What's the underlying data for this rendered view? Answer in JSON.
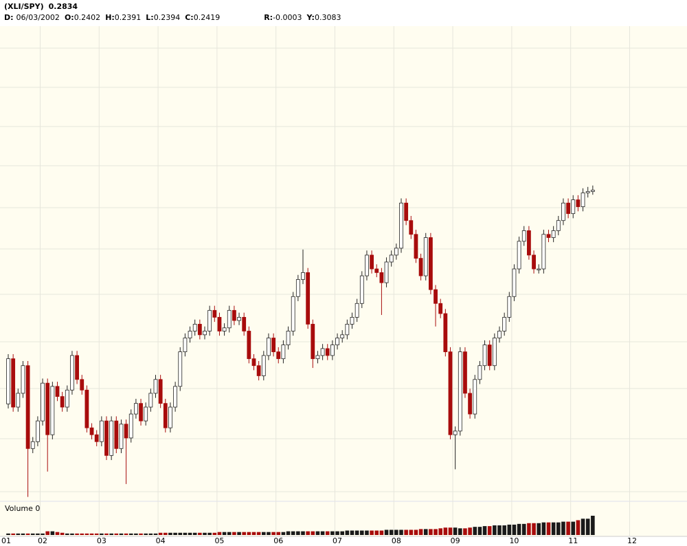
{
  "header": {
    "symbol": "(XLI/SPY)",
    "last": "0.2834",
    "fields": [
      {
        "label": "D:",
        "value": "06/03/2002"
      },
      {
        "label": "O:",
        "value": "0.2402"
      },
      {
        "label": "H:",
        "value": "0.2391"
      },
      {
        "label": "L:",
        "value": "0.2394"
      },
      {
        "label": "C:",
        "value": "0.2419"
      },
      {
        "label": "R:",
        "value": "-0.0003"
      },
      {
        "label": "Y:",
        "value": "0.3083"
      }
    ]
  },
  "volume_label": "Volume 0",
  "chart_data": {
    "type": "candlestick",
    "ylim": [
      0.216,
      0.319
    ],
    "up_color": "#ffffff",
    "down_color": "#a80c0c",
    "volume_up_color": "#1a1a1a",
    "volume_down_color": "#a80c0c",
    "xticks": [
      "01",
      "02",
      "03",
      "04",
      "05",
      "06",
      "07",
      "08",
      "09",
      "10",
      "11",
      "12"
    ],
    "open": [
      0.237,
      0.2468,
      0.2363,
      0.2393,
      0.2453,
      0.2273,
      0.2288,
      0.2333,
      0.2415,
      0.2303,
      0.2408,
      0.2386,
      0.2363,
      0.24,
      0.2475,
      0.2423,
      0.24,
      0.2318,
      0.2303,
      0.2288,
      0.2333,
      0.2258,
      0.2333,
      0.2273,
      0.2326,
      0.2296,
      0.2348,
      0.2371,
      0.2333,
      0.2363,
      0.2393,
      0.2423,
      0.2371,
      0.2318,
      0.2363,
      0.2408,
      0.2483,
      0.2513,
      0.2528,
      0.2543,
      0.252,
      0.2528,
      0.2573,
      0.2558,
      0.2528,
      0.2535,
      0.2573,
      0.2551,
      0.2558,
      0.2528,
      0.2468,
      0.2453,
      0.2431,
      0.2475,
      0.2513,
      0.2483,
      0.2468,
      0.2498,
      0.2528,
      0.2603,
      0.264,
      0.2655,
      0.2543,
      0.2468,
      0.2475,
      0.249,
      0.2475,
      0.2498,
      0.2513,
      0.252,
      0.2543,
      0.2558,
      0.2588,
      0.2648,
      0.2693,
      0.2663,
      0.2655,
      0.2633,
      0.2678,
      0.2693,
      0.2708,
      0.2806,
      0.2768,
      0.2738,
      0.2686,
      0.2648,
      0.2731,
      0.2618,
      0.2588,
      0.2566,
      0.2483,
      0.2303,
      0.2311,
      0.2483,
      0.2393,
      0.2348,
      0.2423,
      0.2453,
      0.2498,
      0.2453,
      0.2513,
      0.2528,
      0.2558,
      0.2603,
      0.2663,
      0.2723,
      0.2746,
      0.2693,
      0.2663,
      0.2663,
      0.2738,
      0.2731,
      0.2746,
      0.2768,
      0.2806,
      0.2783,
      0.2813,
      0.2798,
      0.2828,
      0.2831
    ],
    "high": [
      0.2478,
      0.2478,
      0.2403,
      0.2463,
      0.2463,
      0.2298,
      0.2343,
      0.2425,
      0.2425,
      0.2418,
      0.2418,
      0.2396,
      0.241,
      0.2485,
      0.2485,
      0.2433,
      0.241,
      0.2328,
      0.2313,
      0.2343,
      0.2343,
      0.2343,
      0.2343,
      0.2336,
      0.2336,
      0.2358,
      0.2381,
      0.2381,
      0.2373,
      0.2403,
      0.2433,
      0.2433,
      0.2381,
      0.2373,
      0.2418,
      0.2493,
      0.2523,
      0.2538,
      0.2553,
      0.2553,
      0.2538,
      0.2583,
      0.2583,
      0.2568,
      0.2545,
      0.2583,
      0.2583,
      0.2568,
      0.2568,
      0.2538,
      0.2478,
      0.2463,
      0.2485,
      0.2523,
      0.2523,
      0.2493,
      0.2508,
      0.2538,
      0.2613,
      0.265,
      0.2705,
      0.2665,
      0.2553,
      0.2485,
      0.25,
      0.25,
      0.2508,
      0.2523,
      0.253,
      0.2553,
      0.2568,
      0.2598,
      0.2658,
      0.2703,
      0.2703,
      0.2673,
      0.2665,
      0.2688,
      0.2703,
      0.2718,
      0.2816,
      0.2816,
      0.2778,
      0.2748,
      0.2696,
      0.2741,
      0.2741,
      0.2628,
      0.2598,
      0.2576,
      0.2493,
      0.2321,
      0.2493,
      0.2493,
      0.2403,
      0.2433,
      0.2463,
      0.2508,
      0.2508,
      0.2523,
      0.2538,
      0.2568,
      0.2613,
      0.2673,
      0.2733,
      0.2756,
      0.2756,
      0.2703,
      0.2673,
      0.2748,
      0.2748,
      0.2756,
      0.2778,
      0.2816,
      0.2816,
      0.2823,
      0.2823,
      0.2838,
      0.2841,
      0.2844
    ],
    "low": [
      0.236,
      0.2353,
      0.2353,
      0.2383,
      0.2168,
      0.2263,
      0.2278,
      0.2323,
      0.2223,
      0.2293,
      0.2376,
      0.2353,
      0.2353,
      0.239,
      0.2413,
      0.239,
      0.2308,
      0.2293,
      0.2278,
      0.2278,
      0.2248,
      0.2248,
      0.2263,
      0.2263,
      0.2196,
      0.2286,
      0.2338,
      0.2323,
      0.2323,
      0.2353,
      0.2383,
      0.2361,
      0.2308,
      0.2308,
      0.2353,
      0.2398,
      0.2473,
      0.2503,
      0.2518,
      0.251,
      0.251,
      0.2518,
      0.2548,
      0.2518,
      0.2518,
      0.2525,
      0.2541,
      0.2541,
      0.2518,
      0.2458,
      0.2443,
      0.2421,
      0.2421,
      0.2465,
      0.2473,
      0.2458,
      0.2458,
      0.2488,
      0.2518,
      0.2593,
      0.263,
      0.2533,
      0.2448,
      0.2458,
      0.2465,
      0.2465,
      0.2465,
      0.2488,
      0.2503,
      0.251,
      0.2533,
      0.2548,
      0.2578,
      0.2638,
      0.2653,
      0.2645,
      0.2563,
      0.2623,
      0.2668,
      0.2683,
      0.2698,
      0.2758,
      0.2728,
      0.2676,
      0.2638,
      0.2638,
      0.2608,
      0.2538,
      0.2556,
      0.2473,
      0.2293,
      0.2228,
      0.2301,
      0.2383,
      0.2338,
      0.2338,
      0.2413,
      0.2443,
      0.2443,
      0.2443,
      0.2503,
      0.2518,
      0.2548,
      0.2593,
      0.2653,
      0.2713,
      0.2683,
      0.2653,
      0.2653,
      0.2653,
      0.2721,
      0.2721,
      0.2736,
      0.2758,
      0.2773,
      0.2773,
      0.2788,
      0.2788,
      0.2818,
      0.2824
    ],
    "close": [
      0.2468,
      0.2363,
      0.2393,
      0.2453,
      0.2273,
      0.2288,
      0.2333,
      0.2415,
      0.2303,
      0.2408,
      0.2386,
      0.2363,
      0.24,
      0.2475,
      0.2423,
      0.24,
      0.2318,
      0.2303,
      0.2288,
      0.2333,
      0.2258,
      0.2333,
      0.2273,
      0.2326,
      0.2296,
      0.2348,
      0.2371,
      0.2333,
      0.2363,
      0.2393,
      0.2423,
      0.2371,
      0.2318,
      0.2363,
      0.2408,
      0.2483,
      0.2513,
      0.2528,
      0.2543,
      0.252,
      0.2528,
      0.2573,
      0.2558,
      0.2528,
      0.2535,
      0.2573,
      0.2551,
      0.2558,
      0.2528,
      0.2468,
      0.2453,
      0.2431,
      0.2475,
      0.2513,
      0.2483,
      0.2468,
      0.2498,
      0.2528,
      0.2603,
      0.264,
      0.2655,
      0.2543,
      0.2468,
      0.2475,
      0.249,
      0.2475,
      0.2498,
      0.2513,
      0.252,
      0.2543,
      0.2558,
      0.2588,
      0.2648,
      0.2693,
      0.2663,
      0.2655,
      0.2633,
      0.2678,
      0.2693,
      0.2708,
      0.2806,
      0.2768,
      0.2738,
      0.2686,
      0.2648,
      0.2731,
      0.2618,
      0.2588,
      0.2566,
      0.2483,
      0.2303,
      0.2311,
      0.2483,
      0.2393,
      0.2348,
      0.2423,
      0.2453,
      0.2498,
      0.2453,
      0.2513,
      0.2528,
      0.2558,
      0.2603,
      0.2663,
      0.2723,
      0.2746,
      0.2693,
      0.2663,
      0.2663,
      0.2738,
      0.2731,
      0.2746,
      0.2768,
      0.2806,
      0.2783,
      0.2813,
      0.2798,
      0.2828,
      0.2831,
      0.2834
    ],
    "volume": [
      2,
      2,
      2,
      2,
      2,
      2,
      2,
      2,
      5,
      5,
      4,
      3,
      2,
      2,
      2,
      2,
      2,
      2,
      2,
      2,
      2,
      2,
      2,
      2,
      2,
      2,
      2,
      2,
      2,
      2,
      2,
      3,
      3,
      3,
      3,
      3,
      3,
      3,
      3,
      3,
      3,
      3,
      3,
      4,
      4,
      4,
      4,
      4,
      4,
      4,
      4,
      4,
      4,
      4,
      4,
      4,
      4,
      5,
      5,
      5,
      5,
      5,
      5,
      5,
      5,
      5,
      5,
      5,
      5,
      6,
      6,
      6,
      6,
      6,
      6,
      6,
      6,
      7,
      7,
      7,
      7,
      7,
      7,
      7,
      8,
      8,
      8,
      8,
      9,
      10,
      10,
      10,
      9,
      9,
      10,
      11,
      11,
      12,
      12,
      13,
      13,
      13,
      14,
      14,
      15,
      15,
      16,
      16,
      16,
      17,
      17,
      17,
      17,
      18,
      18,
      18,
      20,
      22,
      22,
      26
    ]
  }
}
